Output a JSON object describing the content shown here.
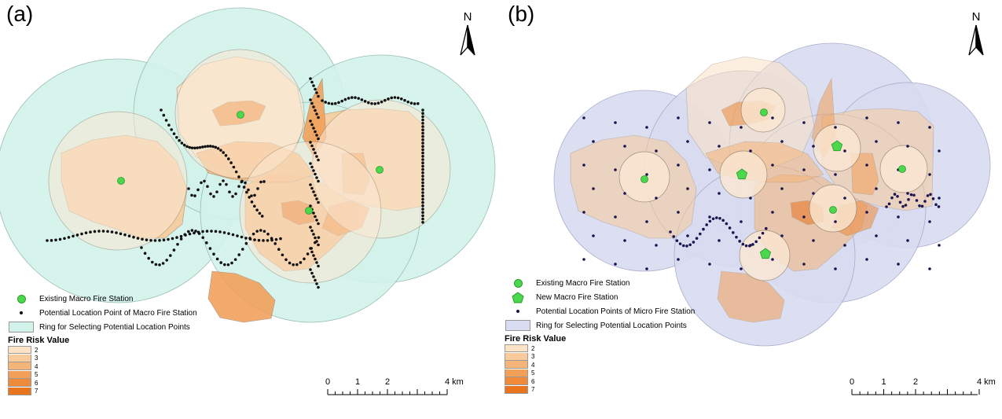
{
  "panels": [
    {
      "id": "a",
      "label": "(a)",
      "north_label": "N",
      "legend": {
        "existing_station": "Existing Macro Fire Station",
        "potential_points": "Potential Location Point of Macro Fire Station",
        "ring": "Ring for Selecting Potential Location Points",
        "risk_title": "Fire Risk Value"
      },
      "ring_fill": "#d2f2ea",
      "ring_stroke": "#8fb8ad",
      "point_color": "#111111"
    },
    {
      "id": "b",
      "label": "(b)",
      "north_label": "N",
      "legend": {
        "existing_station": "Existing Macro Fire Station",
        "new_station": "New Macro Fire Station",
        "potential_points": "Potential Location Points of Micro Fire Station",
        "ring": "Ring for Selecting Potential Location Points",
        "risk_title": "Fire Risk Value"
      },
      "ring_fill": "#d9dcf0",
      "ring_stroke": "#a3a6c8",
      "point_color": "#1b1450"
    }
  ],
  "risk_classes": [
    {
      "value": "2",
      "color": "#fce3c6"
    },
    {
      "value": "3",
      "color": "#f9cb9a"
    },
    {
      "value": "4",
      "color": "#f6b578"
    },
    {
      "value": "5",
      "color": "#f29f58"
    },
    {
      "value": "6",
      "color": "#ee8a3a"
    },
    {
      "value": "7",
      "color": "#e8741e"
    }
  ],
  "scale": {
    "labels": [
      "0",
      "1",
      "2",
      "4 km"
    ]
  },
  "colors": {
    "station_green": "#4cd84c",
    "station_outline": "#2a9a2a",
    "district_outline": "#9c8a78",
    "page_background": "#ffffff"
  }
}
